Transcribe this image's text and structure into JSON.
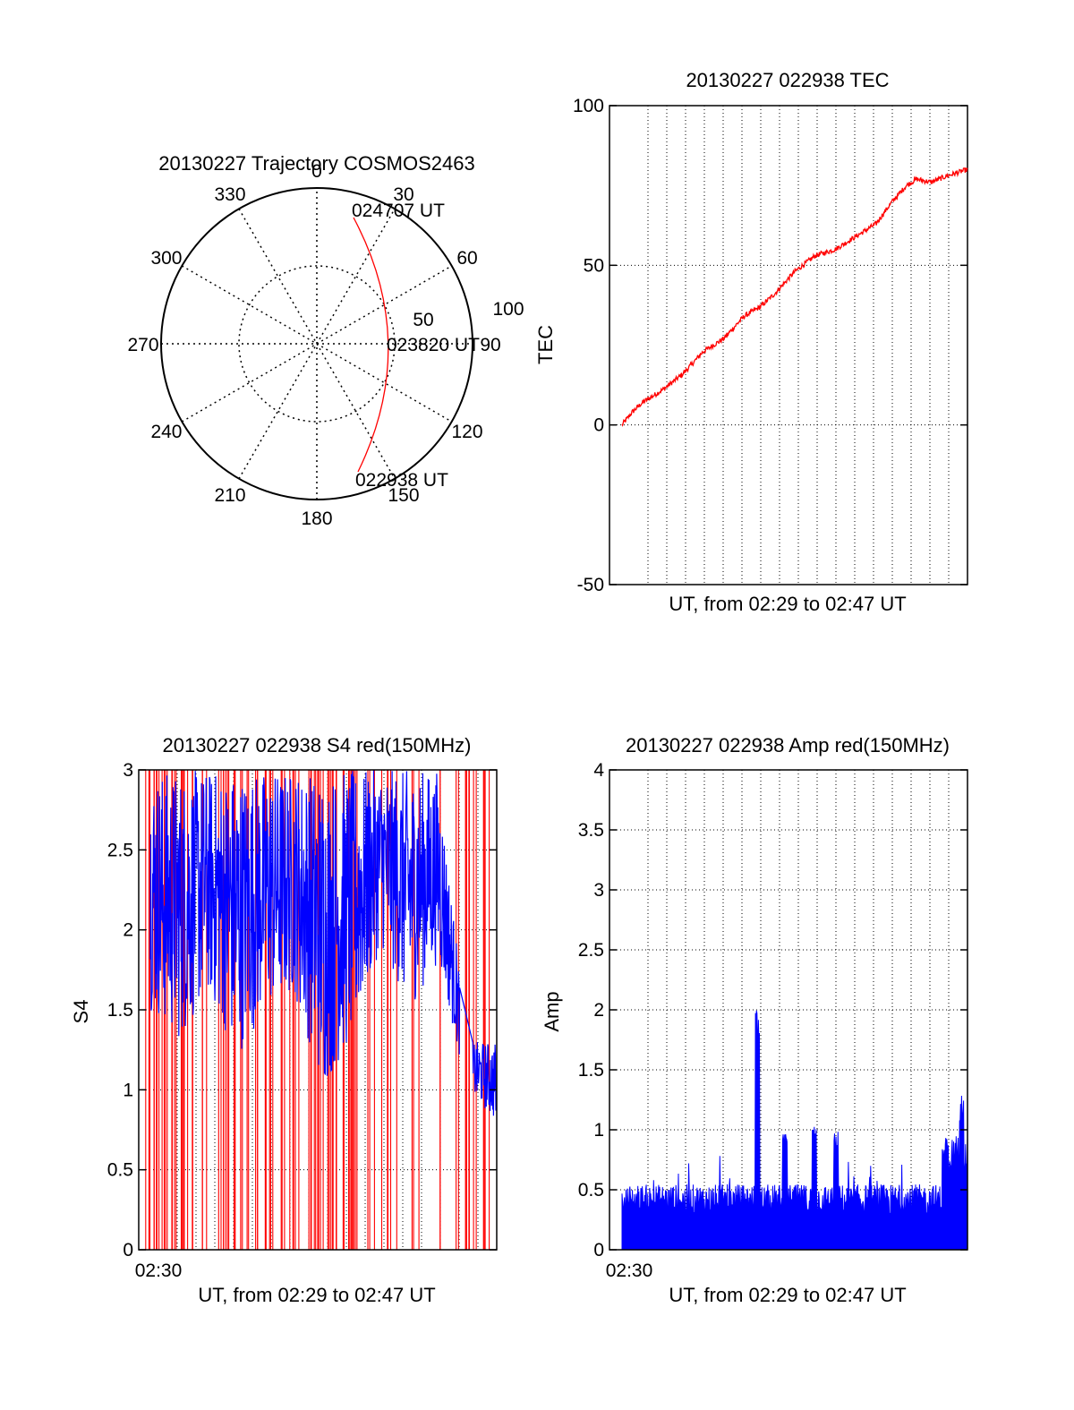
{
  "chart_data": [
    {
      "type": "polar",
      "title": "20130227 Trajectory COSMOS2463",
      "angle_labels": [
        "0",
        "30",
        "60",
        "90",
        "120",
        "150",
        "180",
        "210",
        "240",
        "270",
        "300",
        "330"
      ],
      "radial_labels": [
        "50",
        "100"
      ],
      "trajectory": {
        "color": "#ff0000",
        "labels": [
          "022938 UT",
          "023820 UT",
          "024707 UT"
        ],
        "points": [
          {
            "t": "022938 UT",
            "az": 166,
            "r": 90
          },
          {
            "t": "023820 UT",
            "az": 106,
            "r": 46
          },
          {
            "t": "024707 UT",
            "az": 17,
            "r": 90
          }
        ]
      }
    },
    {
      "type": "line",
      "title": "20130227 022938 TEC",
      "xlabel": "UT, from 02:29 to 02:47 UT",
      "ylabel": "TEC",
      "ylim": [
        -50,
        100
      ],
      "yticks": [
        "-50",
        "0",
        "50",
        "100"
      ],
      "grid": "dotted",
      "x_minutes": [
        0,
        0.5,
        1,
        2,
        3,
        4,
        5,
        6,
        6.8,
        7.5,
        8.5,
        9.5,
        10.5,
        11.5,
        12.5,
        13.3,
        14,
        14.5,
        15.2,
        16,
        16.5,
        17
      ],
      "series": [
        {
          "color": "#ff0000",
          "values": [
            0,
            4,
            7,
            11,
            16,
            23,
            27,
            34,
            37,
            41,
            48,
            53,
            55,
            59,
            63,
            70,
            75,
            77,
            76,
            78,
            79,
            80
          ]
        }
      ]
    },
    {
      "type": "line",
      "title": "20130227 022938 S4 red(150MHz)",
      "xlabel": "UT, from 02:29 to 02:47 UT",
      "ylabel": "S4",
      "ylim": [
        0,
        3
      ],
      "yticks": [
        "0",
        "0.5",
        "1",
        "1.5",
        "2",
        "2.5",
        "3"
      ],
      "xtick_label": "02:30",
      "grid": "dotted",
      "series": [
        {
          "color": "#ff0000",
          "description": "0 to 3"
        },
        {
          "color": "#0000ff",
          "envelope_low": [
            1.5,
            1.3,
            1.6,
            1.2,
            1.5,
            1.6,
            1.0,
            1.3,
            1.9,
            1.5,
            1.8,
            1.0,
            0.8
          ],
          "envelope_high": [
            3,
            3,
            3,
            3,
            3,
            3,
            3,
            3,
            3,
            3,
            3,
            1.3,
            1.3
          ]
        }
      ]
    },
    {
      "type": "area",
      "title": "20130227 022938 Amp red(150MHz)",
      "xlabel": "UT, from 02:29 to 02:47 UT",
      "ylabel": "Amp",
      "ylim": [
        0,
        4
      ],
      "yticks": [
        "0",
        "0.5",
        "1",
        "1.5",
        "2",
        "2.5",
        "3",
        "3.5",
        "4"
      ],
      "xtick_label": "02:30",
      "grid": "dotted",
      "series": [
        {
          "color": "#0000ff",
          "spikes": [
            {
              "x_minutes": 6.9,
              "value": 2.1
            },
            {
              "x_minutes": 8.3,
              "value": 0.97
            },
            {
              "x_minutes": 9.8,
              "value": 1.03
            },
            {
              "x_minutes": 10.9,
              "value": 1.0
            },
            {
              "x_minutes": 17.3,
              "value": 1.3
            }
          ],
          "baseline_level": 0.35
        }
      ]
    }
  ]
}
